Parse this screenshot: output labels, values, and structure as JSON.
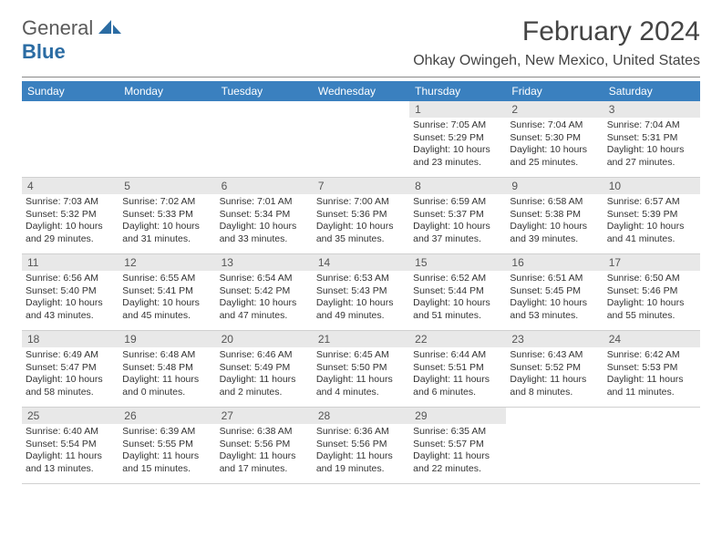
{
  "logo": {
    "general": "General",
    "blue": "Blue"
  },
  "title": "February 2024",
  "location": "Ohkay Owingeh, New Mexico, United States",
  "colors": {
    "header_bg": "#3a80bf",
    "header_text": "#ffffff",
    "daynum_bg": "#e8e8e8",
    "daynum_text": "#555555",
    "border": "#d0d0d0",
    "body_text": "#333333",
    "logo_blue": "#2b6ca3",
    "logo_grey": "#5a5a5a"
  },
  "dow": [
    "Sunday",
    "Monday",
    "Tuesday",
    "Wednesday",
    "Thursday",
    "Friday",
    "Saturday"
  ],
  "weeks": [
    [
      null,
      null,
      null,
      null,
      {
        "n": "1",
        "sr": "Sunrise: 7:05 AM",
        "ss": "Sunset: 5:29 PM",
        "d1": "Daylight: 10 hours",
        "d2": "and 23 minutes."
      },
      {
        "n": "2",
        "sr": "Sunrise: 7:04 AM",
        "ss": "Sunset: 5:30 PM",
        "d1": "Daylight: 10 hours",
        "d2": "and 25 minutes."
      },
      {
        "n": "3",
        "sr": "Sunrise: 7:04 AM",
        "ss": "Sunset: 5:31 PM",
        "d1": "Daylight: 10 hours",
        "d2": "and 27 minutes."
      }
    ],
    [
      {
        "n": "4",
        "sr": "Sunrise: 7:03 AM",
        "ss": "Sunset: 5:32 PM",
        "d1": "Daylight: 10 hours",
        "d2": "and 29 minutes."
      },
      {
        "n": "5",
        "sr": "Sunrise: 7:02 AM",
        "ss": "Sunset: 5:33 PM",
        "d1": "Daylight: 10 hours",
        "d2": "and 31 minutes."
      },
      {
        "n": "6",
        "sr": "Sunrise: 7:01 AM",
        "ss": "Sunset: 5:34 PM",
        "d1": "Daylight: 10 hours",
        "d2": "and 33 minutes."
      },
      {
        "n": "7",
        "sr": "Sunrise: 7:00 AM",
        "ss": "Sunset: 5:36 PM",
        "d1": "Daylight: 10 hours",
        "d2": "and 35 minutes."
      },
      {
        "n": "8",
        "sr": "Sunrise: 6:59 AM",
        "ss": "Sunset: 5:37 PM",
        "d1": "Daylight: 10 hours",
        "d2": "and 37 minutes."
      },
      {
        "n": "9",
        "sr": "Sunrise: 6:58 AM",
        "ss": "Sunset: 5:38 PM",
        "d1": "Daylight: 10 hours",
        "d2": "and 39 minutes."
      },
      {
        "n": "10",
        "sr": "Sunrise: 6:57 AM",
        "ss": "Sunset: 5:39 PM",
        "d1": "Daylight: 10 hours",
        "d2": "and 41 minutes."
      }
    ],
    [
      {
        "n": "11",
        "sr": "Sunrise: 6:56 AM",
        "ss": "Sunset: 5:40 PM",
        "d1": "Daylight: 10 hours",
        "d2": "and 43 minutes."
      },
      {
        "n": "12",
        "sr": "Sunrise: 6:55 AM",
        "ss": "Sunset: 5:41 PM",
        "d1": "Daylight: 10 hours",
        "d2": "and 45 minutes."
      },
      {
        "n": "13",
        "sr": "Sunrise: 6:54 AM",
        "ss": "Sunset: 5:42 PM",
        "d1": "Daylight: 10 hours",
        "d2": "and 47 minutes."
      },
      {
        "n": "14",
        "sr": "Sunrise: 6:53 AM",
        "ss": "Sunset: 5:43 PM",
        "d1": "Daylight: 10 hours",
        "d2": "and 49 minutes."
      },
      {
        "n": "15",
        "sr": "Sunrise: 6:52 AM",
        "ss": "Sunset: 5:44 PM",
        "d1": "Daylight: 10 hours",
        "d2": "and 51 minutes."
      },
      {
        "n": "16",
        "sr": "Sunrise: 6:51 AM",
        "ss": "Sunset: 5:45 PM",
        "d1": "Daylight: 10 hours",
        "d2": "and 53 minutes."
      },
      {
        "n": "17",
        "sr": "Sunrise: 6:50 AM",
        "ss": "Sunset: 5:46 PM",
        "d1": "Daylight: 10 hours",
        "d2": "and 55 minutes."
      }
    ],
    [
      {
        "n": "18",
        "sr": "Sunrise: 6:49 AM",
        "ss": "Sunset: 5:47 PM",
        "d1": "Daylight: 10 hours",
        "d2": "and 58 minutes."
      },
      {
        "n": "19",
        "sr": "Sunrise: 6:48 AM",
        "ss": "Sunset: 5:48 PM",
        "d1": "Daylight: 11 hours",
        "d2": "and 0 minutes."
      },
      {
        "n": "20",
        "sr": "Sunrise: 6:46 AM",
        "ss": "Sunset: 5:49 PM",
        "d1": "Daylight: 11 hours",
        "d2": "and 2 minutes."
      },
      {
        "n": "21",
        "sr": "Sunrise: 6:45 AM",
        "ss": "Sunset: 5:50 PM",
        "d1": "Daylight: 11 hours",
        "d2": "and 4 minutes."
      },
      {
        "n": "22",
        "sr": "Sunrise: 6:44 AM",
        "ss": "Sunset: 5:51 PM",
        "d1": "Daylight: 11 hours",
        "d2": "and 6 minutes."
      },
      {
        "n": "23",
        "sr": "Sunrise: 6:43 AM",
        "ss": "Sunset: 5:52 PM",
        "d1": "Daylight: 11 hours",
        "d2": "and 8 minutes."
      },
      {
        "n": "24",
        "sr": "Sunrise: 6:42 AM",
        "ss": "Sunset: 5:53 PM",
        "d1": "Daylight: 11 hours",
        "d2": "and 11 minutes."
      }
    ],
    [
      {
        "n": "25",
        "sr": "Sunrise: 6:40 AM",
        "ss": "Sunset: 5:54 PM",
        "d1": "Daylight: 11 hours",
        "d2": "and 13 minutes."
      },
      {
        "n": "26",
        "sr": "Sunrise: 6:39 AM",
        "ss": "Sunset: 5:55 PM",
        "d1": "Daylight: 11 hours",
        "d2": "and 15 minutes."
      },
      {
        "n": "27",
        "sr": "Sunrise: 6:38 AM",
        "ss": "Sunset: 5:56 PM",
        "d1": "Daylight: 11 hours",
        "d2": "and 17 minutes."
      },
      {
        "n": "28",
        "sr": "Sunrise: 6:36 AM",
        "ss": "Sunset: 5:56 PM",
        "d1": "Daylight: 11 hours",
        "d2": "and 19 minutes."
      },
      {
        "n": "29",
        "sr": "Sunrise: 6:35 AM",
        "ss": "Sunset: 5:57 PM",
        "d1": "Daylight: 11 hours",
        "d2": "and 22 minutes."
      },
      null,
      null
    ]
  ]
}
